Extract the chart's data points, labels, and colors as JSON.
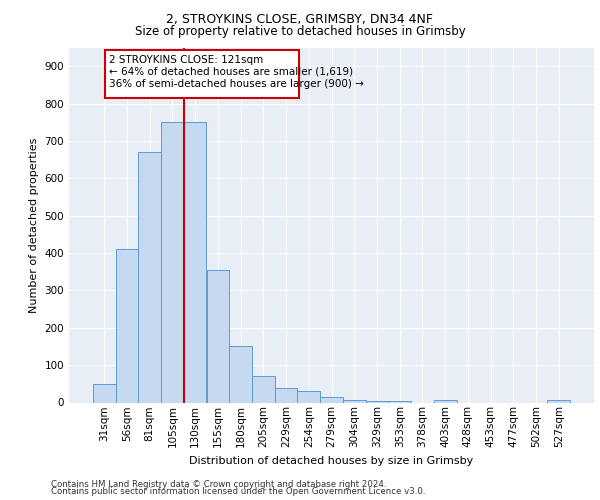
{
  "title1": "2, STROYKINS CLOSE, GRIMSBY, DN34 4NF",
  "title2": "Size of property relative to detached houses in Grimsby",
  "xlabel": "Distribution of detached houses by size in Grimsby",
  "ylabel": "Number of detached properties",
  "footer1": "Contains HM Land Registry data © Crown copyright and database right 2024.",
  "footer2": "Contains public sector information licensed under the Open Government Licence v3.0.",
  "annotation_line1": "2 STROYKINS CLOSE: 121sqm",
  "annotation_line2": "← 64% of detached houses are smaller (1,619)",
  "annotation_line3": "36% of semi-detached houses are larger (900) →",
  "categories": [
    "31sqm",
    "56sqm",
    "81sqm",
    "105sqm",
    "130sqm",
    "155sqm",
    "180sqm",
    "205sqm",
    "229sqm",
    "254sqm",
    "279sqm",
    "304sqm",
    "329sqm",
    "353sqm",
    "378sqm",
    "403sqm",
    "428sqm",
    "453sqm",
    "477sqm",
    "502sqm",
    "527sqm"
  ],
  "values": [
    50,
    410,
    670,
    750,
    750,
    355,
    150,
    70,
    38,
    30,
    15,
    8,
    5,
    5,
    0,
    8,
    0,
    0,
    0,
    0,
    8
  ],
  "bar_color": "#c6d9f1",
  "bar_edge_color": "#5b9bd5",
  "vline_color": "#cc0000",
  "vline_x_index": 4,
  "annotation_box_color": "#cc0000",
  "background_color": "#e8eef5",
  "grid_color": "#ffffff",
  "ylim": [
    0,
    950
  ],
  "yticks": [
    0,
    100,
    200,
    300,
    400,
    500,
    600,
    700,
    800,
    900
  ],
  "title1_fontsize": 9,
  "title2_fontsize": 8.5,
  "ylabel_fontsize": 8,
  "xlabel_fontsize": 8,
  "tick_fontsize": 7.5,
  "footer_fontsize": 6.2,
  "ann_fontsize": 7.5
}
